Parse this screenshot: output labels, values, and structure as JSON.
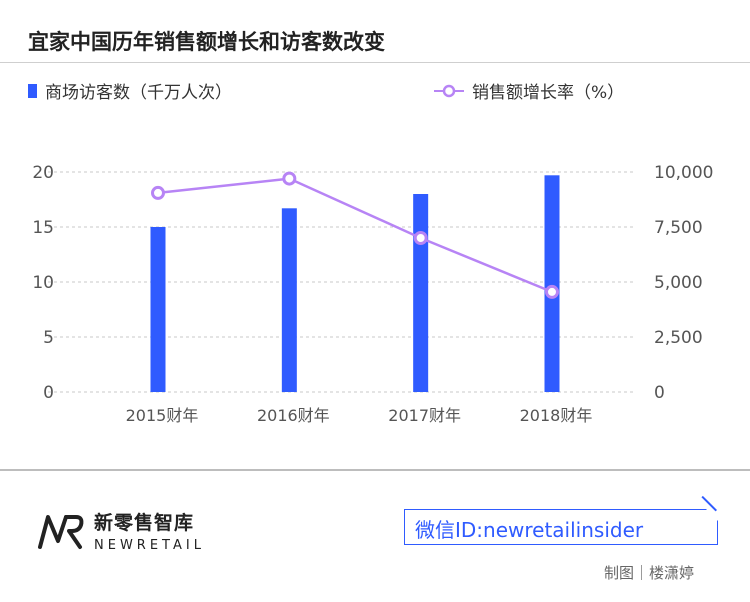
{
  "title": "宜家中国历年销售额增长和访客数改变",
  "legend": {
    "bar_label": "商场访客数（千万人次）",
    "line_label": "销售额增长率（%）"
  },
  "colors": {
    "bar": "#2f5bff",
    "line": "#b784f5",
    "grid": "#c8c8c8",
    "axis_text": "#555555",
    "wechat": "#2f5bff"
  },
  "chart_data": {
    "type": "bar+line",
    "categories": [
      "2015财年",
      "2016财年",
      "2017财年",
      "2018财年"
    ],
    "series": [
      {
        "name": "商场访客数（千万人次）",
        "type": "bar",
        "axis": "left",
        "values": [
          15.0,
          16.7,
          18.0,
          19.7
        ]
      },
      {
        "name": "销售额增长率（%）",
        "type": "line",
        "axis": "right",
        "values": [
          9050,
          9700,
          7000,
          4550
        ]
      }
    ],
    "y_left": {
      "ticks": [
        "0",
        "5",
        "10",
        "15",
        "20"
      ],
      "range": [
        0,
        20
      ]
    },
    "y_right": {
      "ticks": [
        "0",
        "2,500",
        "5,000",
        "7,500",
        "10,000"
      ],
      "range": [
        0,
        10000
      ]
    },
    "grid": true,
    "grid_style": "dashed",
    "legend_position": "top"
  },
  "footer": {
    "logo_cn": "新零售智库",
    "logo_en": "NEWRETAIL",
    "wechat": "微信ID:newretailinsider",
    "credit": "制图｜楼潇婷"
  }
}
